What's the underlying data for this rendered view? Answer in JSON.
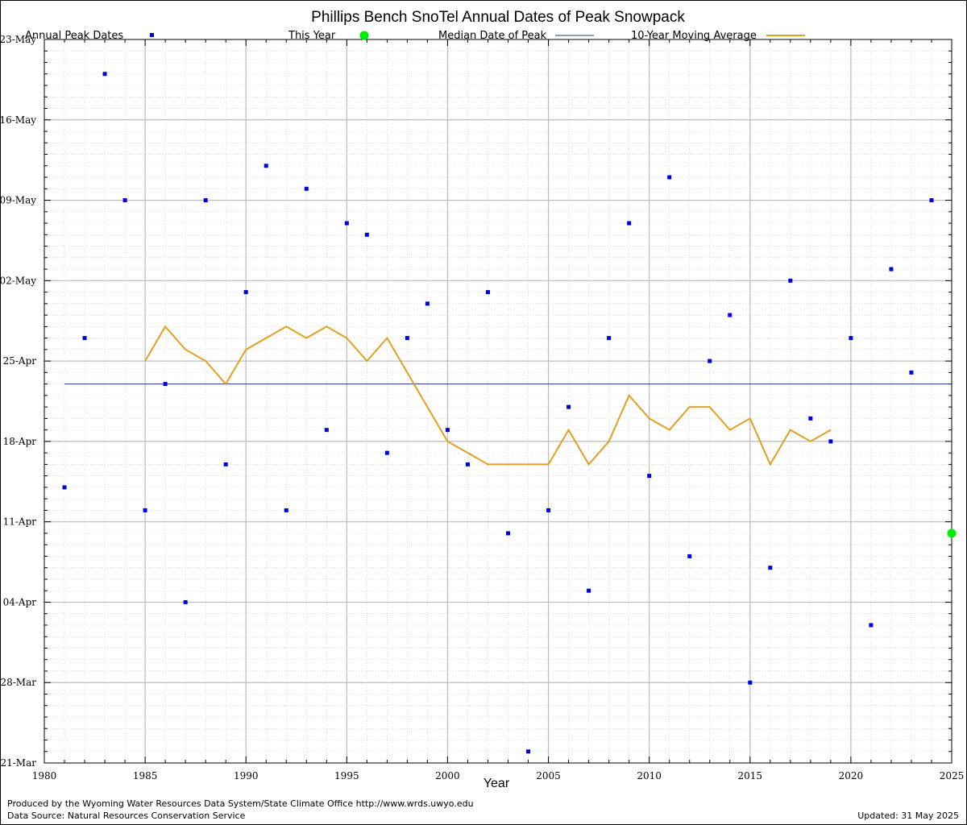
{
  "chart_data": {
    "type": "scatter",
    "title": "Phillips Bench SnoTel Annual Dates of Peak Snowpack",
    "xlabel": "Year",
    "ylabel": "",
    "xlim": [
      1980,
      2025
    ],
    "ylim": [
      "21-Mar",
      "23-May"
    ],
    "x_ticks": [
      "1980",
      "1985",
      "1990",
      "1995",
      "2000",
      "2005",
      "2010",
      "2015",
      "2020",
      "2025"
    ],
    "y_ticks": [
      "21-Mar",
      "28-Mar",
      "04-Apr",
      "11-Apr",
      "18-Apr",
      "25-Apr",
      "02-May",
      "09-May",
      "16-May",
      "23-May"
    ],
    "grid": true,
    "legend_position": "top",
    "legend": {
      "annual": "Annual Peak Dates",
      "this_year": "This Year",
      "median": "Median Date of Peak",
      "moving_avg": "10-Year Moving Average"
    },
    "colors": {
      "annual": "#0000dd",
      "this_year": "#00ee00",
      "median": "#1f3a7a",
      "moving_avg": "#e0a020",
      "grid_major": "#bbbbbb",
      "grid_minor": "#cccccc"
    },
    "series": [
      {
        "name": "Annual Peak Dates",
        "points": [
          {
            "year": 1981,
            "date": "14-Apr"
          },
          {
            "year": 1982,
            "date": "27-Apr"
          },
          {
            "year": 1983,
            "date": "20-May"
          },
          {
            "year": 1984,
            "date": "09-May"
          },
          {
            "year": 1985,
            "date": "12-Apr"
          },
          {
            "year": 1986,
            "date": "23-Apr"
          },
          {
            "year": 1987,
            "date": "04-Apr"
          },
          {
            "year": 1988,
            "date": "09-May"
          },
          {
            "year": 1989,
            "date": "16-Apr"
          },
          {
            "year": 1990,
            "date": "01-May"
          },
          {
            "year": 1991,
            "date": "12-May"
          },
          {
            "year": 1992,
            "date": "12-Apr"
          },
          {
            "year": 1993,
            "date": "10-May"
          },
          {
            "year": 1994,
            "date": "19-Apr"
          },
          {
            "year": 1995,
            "date": "07-May"
          },
          {
            "year": 1996,
            "date": "06-May"
          },
          {
            "year": 1997,
            "date": "17-Apr"
          },
          {
            "year": 1998,
            "date": "27-Apr"
          },
          {
            "year": 1999,
            "date": "30-Apr"
          },
          {
            "year": 2000,
            "date": "19-Apr"
          },
          {
            "year": 2001,
            "date": "16-Apr"
          },
          {
            "year": 2002,
            "date": "01-May"
          },
          {
            "year": 2003,
            "date": "10-Apr"
          },
          {
            "year": 2004,
            "date": "22-Mar"
          },
          {
            "year": 2005,
            "date": "12-Apr"
          },
          {
            "year": 2006,
            "date": "21-Apr"
          },
          {
            "year": 2007,
            "date": "05-Apr"
          },
          {
            "year": 2008,
            "date": "27-Apr"
          },
          {
            "year": 2009,
            "date": "07-May"
          },
          {
            "year": 2010,
            "date": "15-Apr"
          },
          {
            "year": 2011,
            "date": "11-May"
          },
          {
            "year": 2012,
            "date": "08-Apr"
          },
          {
            "year": 2013,
            "date": "25-Apr"
          },
          {
            "year": 2014,
            "date": "29-Apr"
          },
          {
            "year": 2015,
            "date": "28-Mar"
          },
          {
            "year": 2016,
            "date": "07-Apr"
          },
          {
            "year": 2017,
            "date": "02-May"
          },
          {
            "year": 2018,
            "date": "20-Apr"
          },
          {
            "year": 2019,
            "date": "18-Apr"
          },
          {
            "year": 2020,
            "date": "27-Apr"
          },
          {
            "year": 2021,
            "date": "02-Apr"
          },
          {
            "year": 2022,
            "date": "03-May"
          },
          {
            "year": 2023,
            "date": "24-Apr"
          },
          {
            "year": 2024,
            "date": "09-May"
          }
        ]
      },
      {
        "name": "This Year",
        "points": [
          {
            "year": 2025,
            "date": "10-Apr"
          }
        ]
      },
      {
        "name": "Median Date of Peak",
        "date": "23-Apr",
        "x_range": [
          1981,
          2025
        ]
      },
      {
        "name": "10-Year Moving Average",
        "points": [
          {
            "year": 1985,
            "date": "25-Apr"
          },
          {
            "year": 1986,
            "date": "28-Apr"
          },
          {
            "year": 1987,
            "date": "26-Apr"
          },
          {
            "year": 1988,
            "date": "25-Apr"
          },
          {
            "year": 1989,
            "date": "23-Apr"
          },
          {
            "year": 1990,
            "date": "26-Apr"
          },
          {
            "year": 1991,
            "date": "27-Apr"
          },
          {
            "year": 1992,
            "date": "28-Apr"
          },
          {
            "year": 1993,
            "date": "27-Apr"
          },
          {
            "year": 1994,
            "date": "28-Apr"
          },
          {
            "year": 1995,
            "date": "27-Apr"
          },
          {
            "year": 1996,
            "date": "25-Apr"
          },
          {
            "year": 1997,
            "date": "27-Apr"
          },
          {
            "year": 1998,
            "date": "24-Apr"
          },
          {
            "year": 1999,
            "date": "21-Apr"
          },
          {
            "year": 2000,
            "date": "18-Apr"
          },
          {
            "year": 2001,
            "date": "17-Apr"
          },
          {
            "year": 2002,
            "date": "16-Apr"
          },
          {
            "year": 2003,
            "date": "16-Apr"
          },
          {
            "year": 2004,
            "date": "16-Apr"
          },
          {
            "year": 2005,
            "date": "16-Apr"
          },
          {
            "year": 2006,
            "date": "19-Apr"
          },
          {
            "year": 2007,
            "date": "16-Apr"
          },
          {
            "year": 2008,
            "date": "18-Apr"
          },
          {
            "year": 2009,
            "date": "22-Apr"
          },
          {
            "year": 2010,
            "date": "20-Apr"
          },
          {
            "year": 2011,
            "date": "19-Apr"
          },
          {
            "year": 2012,
            "date": "21-Apr"
          },
          {
            "year": 2013,
            "date": "21-Apr"
          },
          {
            "year": 2014,
            "date": "19-Apr"
          },
          {
            "year": 2015,
            "date": "20-Apr"
          },
          {
            "year": 2016,
            "date": "16-Apr"
          },
          {
            "year": 2017,
            "date": "19-Apr"
          },
          {
            "year": 2018,
            "date": "18-Apr"
          },
          {
            "year": 2019,
            "date": "19-Apr"
          }
        ]
      }
    ]
  },
  "footer": {
    "produced_by": "Produced by the Wyoming Water Resources Data System/State Climate Office http://www.wrds.uwyo.edu",
    "data_source": "Data Source: Natural Resources Conservation Service",
    "updated": "Updated: 31 May 2025"
  }
}
